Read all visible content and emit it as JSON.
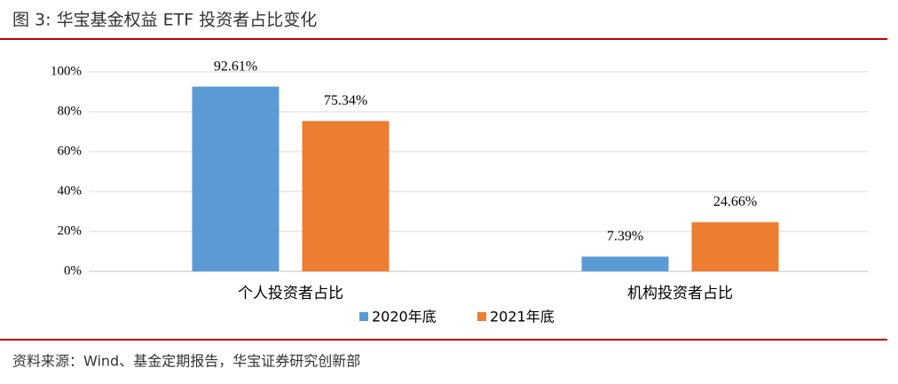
{
  "title": "图 3:  华宝基金权益 ETF 投资者占比变化",
  "source": "资料来源：Wind、基金定期报告，华宝证券研究创新部",
  "chart_data": {
    "type": "bar",
    "categories": [
      "个人投资者占比",
      "机构投资者占比"
    ],
    "series": [
      {
        "name": "2020年底",
        "color": "#5b9bd5",
        "values": [
          92.61,
          7.39
        ],
        "value_labels": [
          "92.61%",
          "7.39%"
        ]
      },
      {
        "name": "2021年底",
        "color": "#ed7d31",
        "values": [
          75.34,
          24.66
        ],
        "value_labels": [
          "75.34%",
          "24.66%"
        ]
      }
    ],
    "ylim": [
      0,
      100
    ],
    "yticks": [
      {
        "value": 0,
        "label": "0%"
      },
      {
        "value": 20,
        "label": "20%"
      },
      {
        "value": 40,
        "label": "40%"
      },
      {
        "value": 60,
        "label": "60%"
      },
      {
        "value": 80,
        "label": "80%"
      },
      {
        "value": 100,
        "label": "100%"
      }
    ],
    "grid": true,
    "legend": "bottom"
  }
}
